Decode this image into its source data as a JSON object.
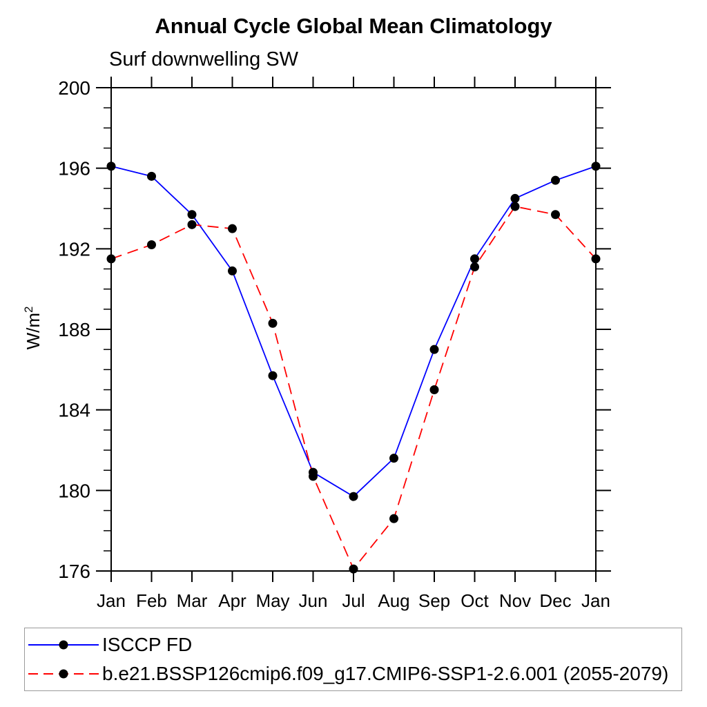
{
  "chart_data": {
    "type": "line",
    "title": "Annual Cycle Global Mean Climatology",
    "subtitle": "Surf downwelling SW",
    "ylabel_base": "W/m",
    "ylabel_sup": "2",
    "xlabel": "",
    "categories": [
      "Jan",
      "Feb",
      "Mar",
      "Apr",
      "May",
      "Jun",
      "Jul",
      "Aug",
      "Sep",
      "Oct",
      "Nov",
      "Dec",
      "Jan"
    ],
    "ylim": [
      176,
      200
    ],
    "ytick_major_step": 4,
    "ytick_minor_step": 1,
    "ytick_labels": [
      "176",
      "180",
      "184",
      "188",
      "192",
      "196",
      "200"
    ],
    "grid": false,
    "legend_position": "bottom",
    "axis_color": "#000000",
    "marker_shape": "filled-circle",
    "series": [
      {
        "name": "ISCCP FD",
        "color": "#0000ff",
        "line_style": "solid",
        "marker_color": "#000000",
        "values": [
          196.1,
          195.6,
          193.7,
          190.9,
          185.7,
          180.9,
          179.7,
          181.6,
          187.0,
          191.5,
          194.5,
          195.4,
          196.1
        ]
      },
      {
        "name": "b.e21.BSSP126cmip6.f09_g17.CMIP6-SSP1-2.6.001 (2055-2079)",
        "color": "#ff0000",
        "line_style": "dashed",
        "marker_color": "#000000",
        "values": [
          191.5,
          192.2,
          193.2,
          193.0,
          188.3,
          180.7,
          176.1,
          178.6,
          185.0,
          191.1,
          194.1,
          193.7,
          191.5
        ]
      }
    ]
  }
}
